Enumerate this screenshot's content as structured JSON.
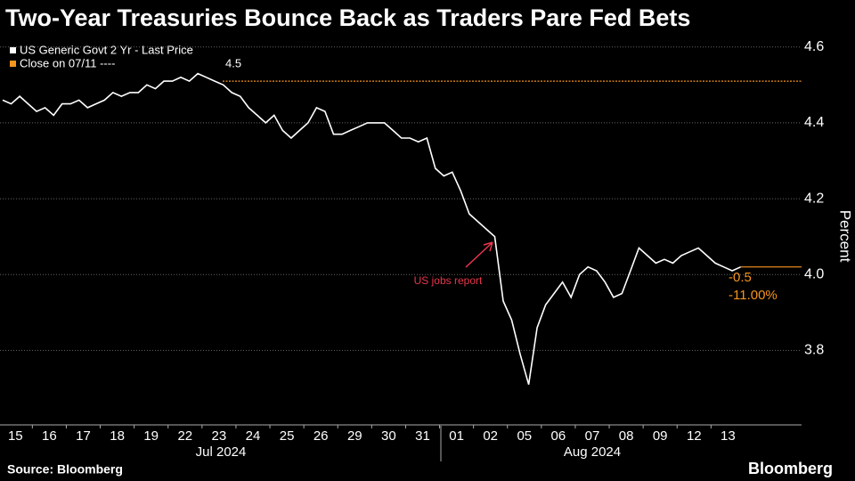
{
  "chart_data": {
    "type": "line",
    "title": "Two-Year Treasuries Bounce Back as Traders Pare Fed Bets",
    "y_label": "Percent",
    "source": "Source: Bloomberg",
    "brand": "Bloomberg",
    "months": [
      "Jul 2024",
      "Aug 2024"
    ],
    "categories": [
      "15",
      null,
      null,
      null,
      "16",
      null,
      null,
      null,
      "17",
      null,
      null,
      null,
      "18",
      null,
      null,
      null,
      "19",
      null,
      null,
      null,
      "22",
      null,
      null,
      null,
      "23",
      null,
      null,
      null,
      "24",
      null,
      null,
      null,
      "25",
      null,
      null,
      null,
      "26",
      null,
      null,
      null,
      "29",
      null,
      null,
      null,
      "30",
      null,
      null,
      null,
      "31",
      null,
      null,
      null,
      "01",
      null,
      null,
      null,
      "02",
      null,
      null,
      null,
      "05",
      null,
      null,
      null,
      "06",
      null,
      null,
      null,
      "07",
      null,
      null,
      null,
      "08",
      null,
      null,
      null,
      "09",
      null,
      null,
      null,
      "12",
      null,
      null,
      null,
      "13",
      null,
      null,
      null
    ],
    "series": [
      {
        "name": "US Generic Govt 2 Yr - Last Price",
        "color": "#ffffff",
        "values": [
          4.46,
          4.45,
          4.47,
          4.45,
          4.43,
          4.44,
          4.42,
          4.45,
          4.45,
          4.46,
          4.44,
          4.45,
          4.46,
          4.48,
          4.47,
          4.48,
          4.48,
          4.5,
          4.49,
          4.51,
          4.51,
          4.52,
          4.51,
          4.53,
          4.52,
          4.51,
          4.5,
          4.48,
          4.47,
          4.44,
          4.42,
          4.4,
          4.42,
          4.38,
          4.36,
          4.38,
          4.4,
          4.44,
          4.43,
          4.37,
          4.37,
          4.38,
          4.39,
          4.4,
          4.4,
          4.4,
          4.38,
          4.36,
          4.36,
          4.35,
          4.36,
          4.28,
          4.26,
          4.27,
          4.22,
          4.16,
          4.14,
          4.12,
          4.1,
          3.93,
          3.88,
          3.79,
          3.71,
          3.86,
          3.92,
          3.95,
          3.98,
          3.94,
          4.0,
          4.02,
          4.01,
          3.98,
          3.94,
          3.95,
          4.01,
          4.07,
          4.05,
          4.03,
          4.04,
          4.03,
          4.05,
          4.06,
          4.07,
          4.05,
          4.03,
          4.02,
          4.01,
          4.02
        ]
      }
    ],
    "close_line": {
      "name": "Close on 07/11 ----",
      "value": 4.51,
      "label": "4.5",
      "color": "#f7941d"
    },
    "change_labels": [
      "-0.5",
      "-11.00%"
    ],
    "annotation": "US jobs report",
    "ylim": [
      3.62,
      4.63
    ],
    "yticks": [
      3.8,
      {
        "value": 4,
        "label": "4.0"
      },
      4.2,
      4.4,
      4.6
    ],
    "grid": true
  }
}
